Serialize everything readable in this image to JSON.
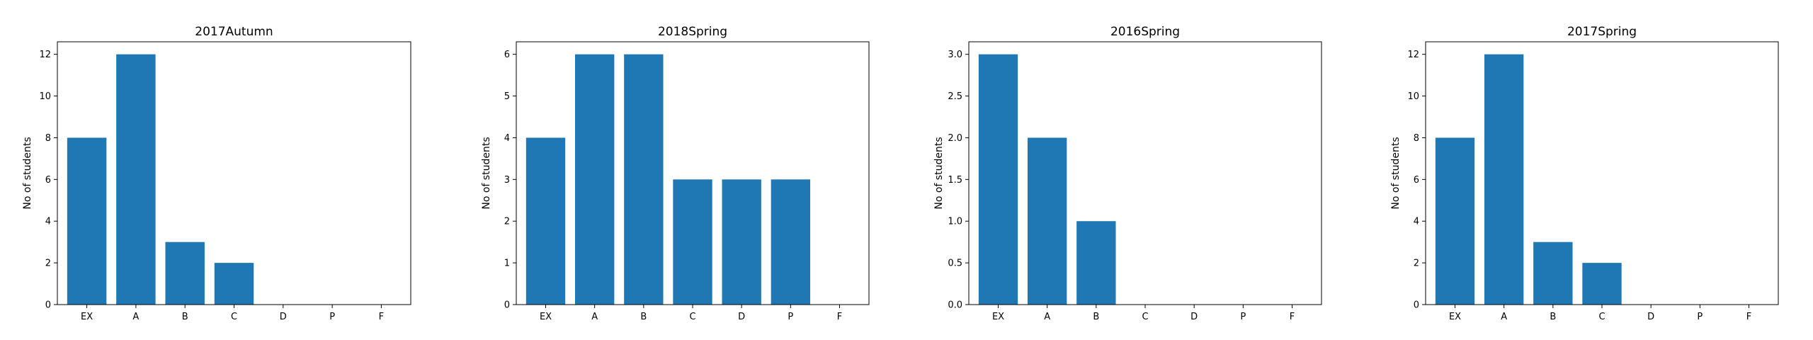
{
  "chart_data": [
    {
      "type": "bar",
      "title": "2017Autumn",
      "xlabel": "",
      "ylabel": "No of students",
      "categories": [
        "EX",
        "A",
        "B",
        "C",
        "D",
        "P",
        "F"
      ],
      "values": [
        8,
        12,
        3,
        2,
        0,
        0,
        0
      ],
      "ylim": [
        0,
        12.6
      ],
      "yticks": [
        "0",
        "2",
        "4",
        "6",
        "8",
        "10",
        "12"
      ],
      "grid": false,
      "bar_color": "#1f77b4"
    },
    {
      "type": "bar",
      "title": "2018Spring",
      "xlabel": "",
      "ylabel": "No of students",
      "categories": [
        "EX",
        "A",
        "B",
        "C",
        "D",
        "P",
        "F"
      ],
      "values": [
        4,
        6,
        6,
        3,
        3,
        3,
        0
      ],
      "ylim": [
        0,
        6.3
      ],
      "yticks": [
        "0",
        "1",
        "2",
        "3",
        "4",
        "5",
        "6"
      ],
      "grid": false,
      "bar_color": "#1f77b4"
    },
    {
      "type": "bar",
      "title": "2016Spring",
      "xlabel": "",
      "ylabel": "No of students",
      "categories": [
        "EX",
        "A",
        "B",
        "C",
        "D",
        "P",
        "F"
      ],
      "values": [
        3,
        2,
        1,
        0,
        0,
        0,
        0
      ],
      "ylim": [
        0,
        3.15
      ],
      "yticks": [
        "0.0",
        "0.5",
        "1.0",
        "1.5",
        "2.0",
        "2.5",
        "3.0"
      ],
      "grid": false,
      "bar_color": "#1f77b4"
    },
    {
      "type": "bar",
      "title": "2017Spring",
      "xlabel": "",
      "ylabel": "No of students",
      "categories": [
        "EX",
        "A",
        "B",
        "C",
        "D",
        "P",
        "F"
      ],
      "values": [
        8,
        12,
        3,
        2,
        0,
        0,
        0
      ],
      "ylim": [
        0,
        12.6
      ],
      "yticks": [
        "0",
        "2",
        "4",
        "6",
        "8",
        "10",
        "12"
      ],
      "grid": false,
      "bar_color": "#1f77b4"
    }
  ]
}
